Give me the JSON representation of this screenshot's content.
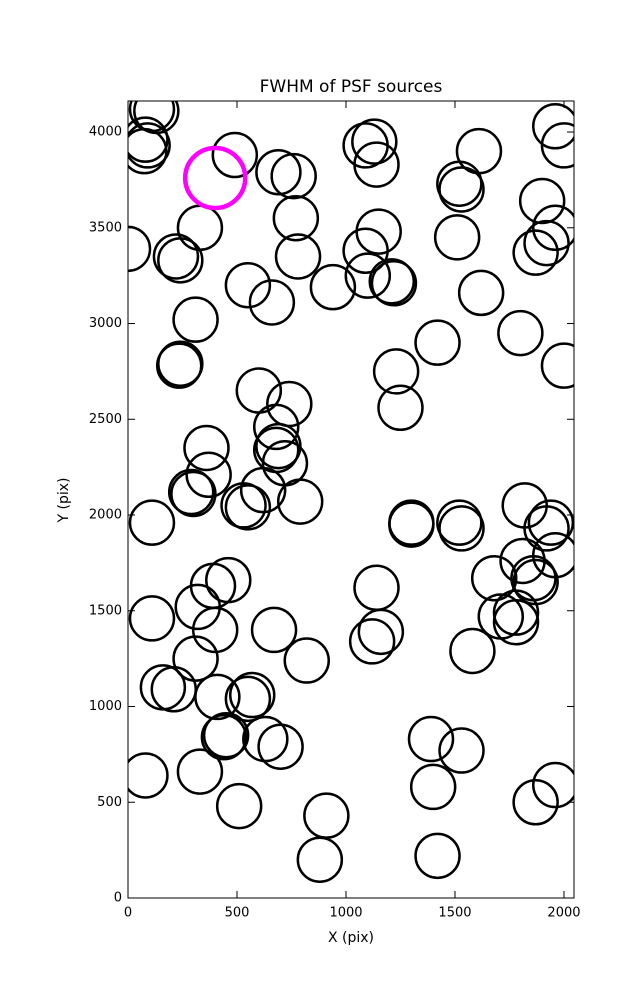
{
  "chart_data": {
    "type": "scatter",
    "title": "FWHM of PSF sources",
    "x_label": "X (pix)",
    "y_label": "Y (pix)",
    "xlim": [
      0,
      2046
    ],
    "ylim": [
      0,
      4162
    ],
    "xticks": [
      0,
      500,
      1000,
      1500,
      2000
    ],
    "yticks": [
      0,
      500,
      1000,
      1500,
      2000,
      2500,
      3000,
      3500,
      4000
    ],
    "grid": false,
    "series": [
      {
        "color": "#000000",
        "x": [
          110,
          130,
          80,
          90,
          75,
          490,
          690,
          760,
          770,
          780,
          1090,
          1130,
          1140,
          1150,
          1090,
          1100,
          1210,
          1220,
          1520,
          1530,
          1610,
          1510,
          1620,
          1900,
          1960,
          2000,
          1870,
          1920,
          1960,
          0,
          220,
          240,
          330,
          550,
          660,
          940,
          310,
          240,
          235,
          600,
          740,
          680,
          690,
          680,
          720,
          360,
          370,
          290,
          300,
          620,
          530,
          550,
          790,
          110,
          1420,
          1800,
          1230,
          1250,
          2000,
          1300,
          1300,
          1520,
          1530,
          1820,
          1940,
          1920,
          1960,
          1810,
          1860,
          1870,
          1680,
          1710,
          1780,
          1780,
          1580,
          1140,
          1160,
          1120,
          820,
          670,
          460,
          390,
          320,
          400,
          310,
          160,
          210,
          110,
          410,
          570,
          550,
          450,
          440,
          630,
          700,
          80,
          330,
          510,
          910,
          880,
          1390,
          1530,
          1400,
          1420,
          1870,
          1960
        ],
        "values": [
          4120,
          4110,
          3960,
          3930,
          3900,
          3880,
          3790,
          3770,
          3550,
          3350,
          3930,
          3950,
          3830,
          3480,
          3380,
          3250,
          3220,
          3210,
          3730,
          3700,
          3900,
          3450,
          3160,
          3640,
          4030,
          3930,
          3370,
          3420,
          3500,
          3390,
          3350,
          3330,
          3500,
          3200,
          3110,
          3190,
          3020,
          2790,
          2780,
          2650,
          2580,
          2460,
          2360,
          2340,
          2270,
          2350,
          2210,
          2120,
          2110,
          2130,
          2050,
          2040,
          2070,
          1960,
          2900,
          2950,
          2750,
          2560,
          2780,
          1960,
          1950,
          1960,
          1930,
          2050,
          1960,
          1930,
          1790,
          1760,
          1670,
          1650,
          1670,
          1470,
          1490,
          1440,
          1290,
          1620,
          1390,
          1340,
          1240,
          1400,
          1660,
          1630,
          1520,
          1400,
          1250,
          1100,
          1090,
          1460,
          1050,
          1060,
          1040,
          850,
          840,
          830,
          790,
          640,
          660,
          480,
          430,
          200,
          830,
          770,
          580,
          220,
          500,
          590
        ]
      },
      {
        "color": "#ff00ff",
        "x": [
          400
        ],
        "values": [
          3760
        ]
      }
    ]
  }
}
